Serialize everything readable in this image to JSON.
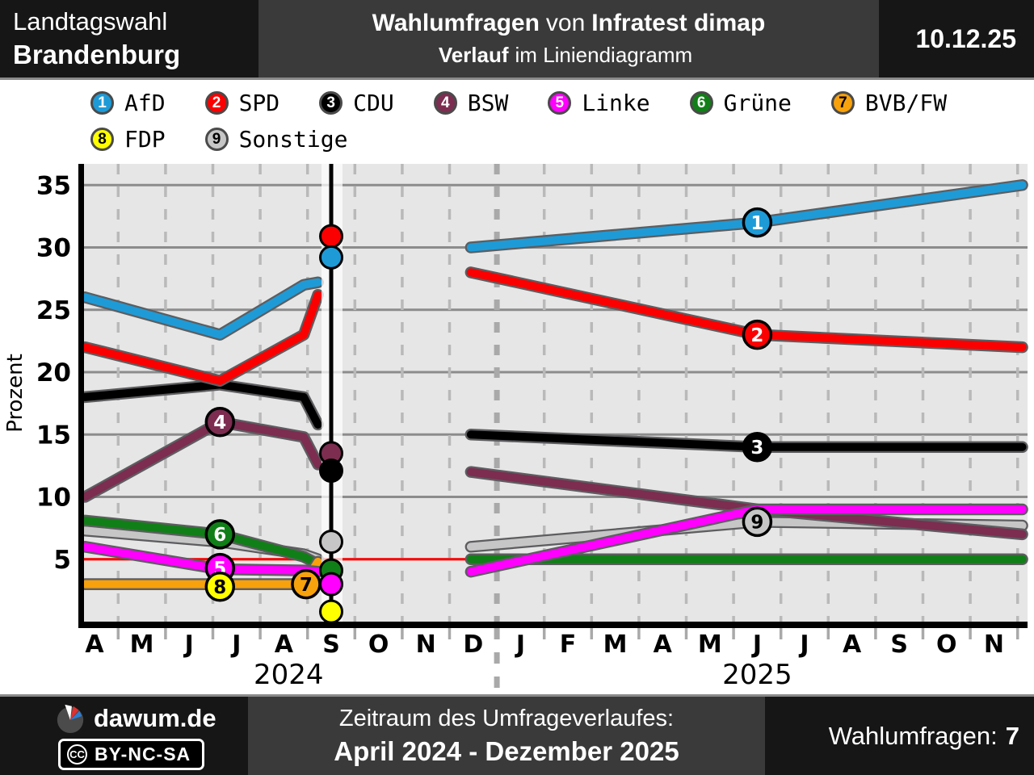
{
  "header": {
    "left_line1": "Landtagswahl",
    "left_line2": "Brandenburg",
    "center_title_bold1": "Wahlumfragen",
    "center_title_normal": "von",
    "center_title_bold2": "Infratest dimap",
    "center_sub_bold": "Verlauf",
    "center_sub_normal": "im Liniendiagramm",
    "date": "10.12.25"
  },
  "legend": {
    "items": [
      {
        "num": 1,
        "label": "AfD",
        "color": "#1E9BD7",
        "num_color": "#ffffff",
        "row": 0
      },
      {
        "num": 2,
        "label": "SPD",
        "color": "#FA0000",
        "num_color": "#ffffff",
        "row": 0
      },
      {
        "num": 3,
        "label": "CDU",
        "color": "#000000",
        "num_color": "#ffffff",
        "row": 0
      },
      {
        "num": 4,
        "label": "BSW",
        "color": "#7C2D50",
        "num_color": "#ffffff",
        "row": 0
      },
      {
        "num": 5,
        "label": "Linke",
        "color": "#FF00FF",
        "num_color": "#ffffff",
        "row": 0
      },
      {
        "num": 6,
        "label": "Grüne",
        "color": "#117F17",
        "num_color": "#ffffff",
        "row": 0
      },
      {
        "num": 7,
        "label": "BVB/FW",
        "color": "#F7A10C",
        "num_color": "#000000",
        "row": 0
      },
      {
        "num": 8,
        "label": "FDP",
        "color": "#FFFF00",
        "num_color": "#000000",
        "row": 1
      },
      {
        "num": 9,
        "label": "Sonstige",
        "color": "#C6C6C6",
        "num_color": "#000000",
        "row": 1
      }
    ]
  },
  "chart_data": {
    "type": "line",
    "title": "Wahlumfragen von Infratest dimap - Verlauf im Liniendiagramm",
    "ylabel": "Prozent",
    "yticks": [
      5,
      10,
      15,
      20,
      25,
      30,
      35
    ],
    "ylim": [
      0,
      36.7
    ],
    "grid": true,
    "threshold_value": 5,
    "x_month_labels": [
      "A",
      "M",
      "J",
      "J",
      "A",
      "S",
      "O",
      "N",
      "D",
      "J",
      "F",
      "M",
      "A",
      "M",
      "J",
      "J",
      "A",
      "S",
      "O",
      "N"
    ],
    "year_labels": [
      {
        "text": "2024",
        "month_index": 4.1
      },
      {
        "text": "2025",
        "month_index": 14.0
      }
    ],
    "election_line": {
      "month_index": 5.0,
      "results": [
        {
          "party": "SPD",
          "value": 30.9
        },
        {
          "party": "AfD",
          "value": 29.2
        },
        {
          "party": "BSW",
          "value": 13.5
        },
        {
          "party": "CDU",
          "value": 12.1
        },
        {
          "party": "Sonstige",
          "value": 6.4
        },
        {
          "party": "Grüne",
          "value": 4.1
        },
        {
          "party": "Linke",
          "value": 3.0
        },
        {
          "party": "FDP",
          "value": 0.8
        }
      ]
    },
    "series": [
      {
        "party": "FDP",
        "num": 8,
        "color": "#FFFF00",
        "num_color": "#000000",
        "marker": [
          2.65,
          2.8
        ],
        "segments": [
          [
            [
              -0.2,
              3
            ],
            [
              2.65,
              3
            ],
            [
              4.42,
              3
            ],
            [
              4.72,
              3
            ]
          ]
        ]
      },
      {
        "party": "Sonstige",
        "num": 9,
        "color": "#C6C6C6",
        "num_color": "#000000",
        "marker": [
          14,
          8
        ],
        "segments": [
          [
            [
              -0.2,
              7.3
            ],
            [
              2.65,
              6.4
            ],
            [
              4.42,
              5.4
            ],
            [
              4.72,
              5.0
            ]
          ],
          [
            [
              7.95,
              6
            ],
            [
              14,
              8
            ],
            [
              19.6,
              7.7
            ]
          ]
        ]
      },
      {
        "party": "Grüne",
        "num": 6,
        "color": "#117F17",
        "num_color": "#ffffff",
        "marker": [
          2.65,
          7
        ],
        "segments": [
          [
            [
              -0.2,
              8.1
            ],
            [
              2.65,
              7
            ],
            [
              4.42,
              5.2
            ],
            [
              4.72,
              4.6
            ]
          ],
          [
            [
              7.95,
              5
            ],
            [
              14,
              5
            ],
            [
              19.6,
              5
            ]
          ]
        ]
      },
      {
        "party": "BVB/FW",
        "num": 7,
        "color": "#F7A10C",
        "num_color": "#000000",
        "marker": [
          4.47,
          3
        ],
        "segments": [
          [
            [
              -0.2,
              3
            ],
            [
              2.65,
              3
            ],
            [
              4.42,
              3
            ],
            [
              4.72,
              4.8
            ]
          ]
        ]
      },
      {
        "party": "BSW",
        "num": 4,
        "color": "#7C2D50",
        "num_color": "#ffffff",
        "marker": [
          2.65,
          16
        ],
        "segments": [
          [
            [
              -0.2,
              10
            ],
            [
              2.65,
              16
            ],
            [
              4.42,
              14.8
            ],
            [
              4.72,
              12.6
            ]
          ],
          [
            [
              7.95,
              12
            ],
            [
              14,
              9
            ],
            [
              19.6,
              7
            ]
          ]
        ]
      },
      {
        "party": "Linke",
        "num": 5,
        "color": "#FF00FF",
        "num_color": "#ffffff",
        "marker": [
          2.65,
          4.3
        ],
        "segments": [
          [
            [
              -0.2,
              6
            ],
            [
              2.65,
              4.2
            ],
            [
              4.42,
              4.1
            ],
            [
              4.72,
              4.0
            ]
          ],
          [
            [
              7.95,
              4
            ],
            [
              14,
              9
            ],
            [
              19.6,
              9
            ]
          ]
        ]
      },
      {
        "party": "CDU",
        "num": 3,
        "color": "#000000",
        "num_color": "#ffffff",
        "marker": [
          14,
          14
        ],
        "segments": [
          [
            [
              -0.2,
              18
            ],
            [
              2.65,
              19
            ],
            [
              4.42,
              18
            ],
            [
              4.72,
              15.8
            ]
          ],
          [
            [
              7.95,
              15
            ],
            [
              14,
              14
            ],
            [
              19.6,
              14
            ]
          ]
        ]
      },
      {
        "party": "SPD",
        "num": 2,
        "color": "#FA0000",
        "num_color": "#ffffff",
        "marker": [
          14,
          23
        ],
        "segments": [
          [
            [
              -0.2,
              22
            ],
            [
              2.65,
              19.3
            ],
            [
              4.42,
              23
            ],
            [
              4.72,
              26.2
            ]
          ],
          [
            [
              7.95,
              28
            ],
            [
              14,
              23
            ],
            [
              19.6,
              22
            ]
          ]
        ]
      },
      {
        "party": "AfD",
        "num": 1,
        "color": "#1E9BD7",
        "num_color": "#ffffff",
        "marker": [
          14,
          32
        ],
        "segments": [
          [
            [
              -0.2,
              26
            ],
            [
              2.65,
              23
            ],
            [
              4.42,
              27
            ],
            [
              4.72,
              27.2
            ]
          ],
          [
            [
              7.95,
              30
            ],
            [
              14,
              32
            ],
            [
              19.6,
              35
            ]
          ]
        ]
      }
    ]
  },
  "footer": {
    "site": "dawum.de",
    "license": "BY-NC-SA",
    "cc_abbr": "CC",
    "period_label": "Zeitraum des Umfrageverlaufes:",
    "period_value": "April 2024 - Dezember 2025",
    "count_label": "Wahlumfragen:",
    "count_value": "7"
  }
}
